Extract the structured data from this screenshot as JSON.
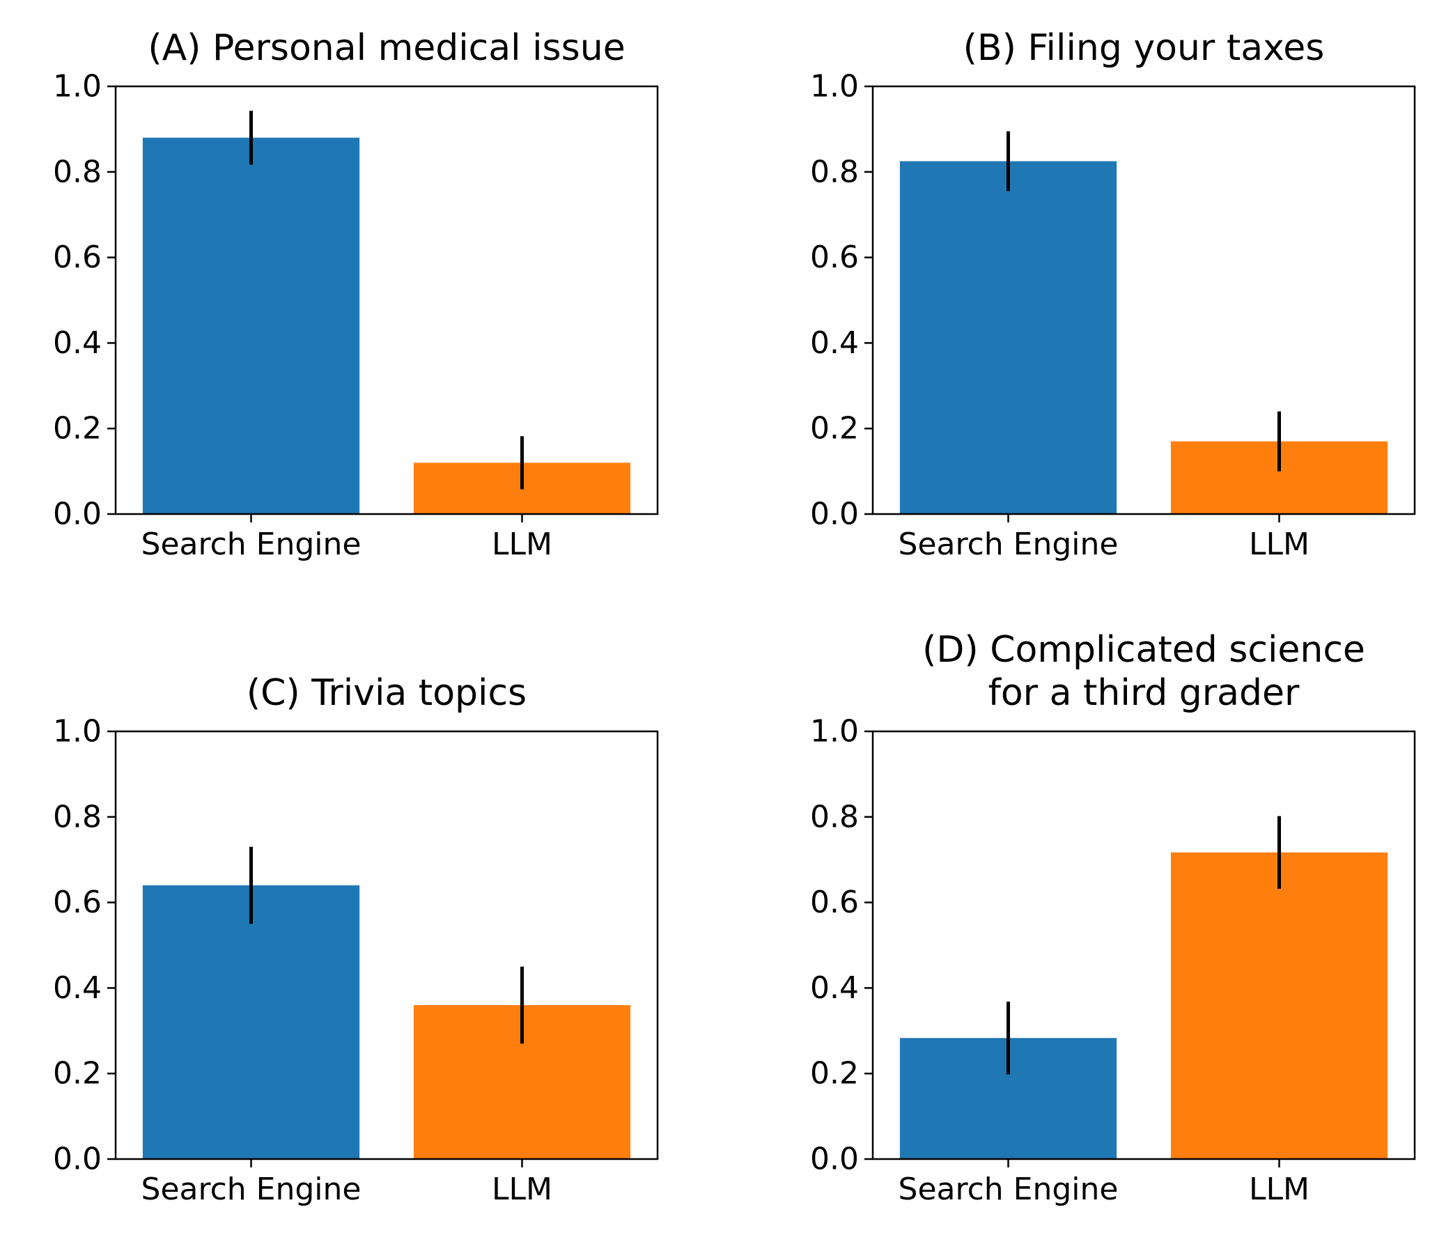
{
  "figure": {
    "background": "#ffffff"
  },
  "chart_data": [
    {
      "type": "bar",
      "title_lines": [
        "(A) Personal medical issue"
      ],
      "categories": [
        "Search Engine",
        "LLM"
      ],
      "values": [
        0.88,
        0.12
      ],
      "error": [
        0.063,
        0.062
      ],
      "colors": [
        "#1f77b4",
        "#ff7f0e"
      ],
      "ylim": [
        0,
        1
      ],
      "yticks": [
        "0.0",
        "0.2",
        "0.4",
        "0.6",
        "0.8",
        "1.0"
      ],
      "xlabel": "",
      "ylabel": ""
    },
    {
      "type": "bar",
      "title_lines": [
        "(B) Filing your taxes"
      ],
      "categories": [
        "Search Engine",
        "LLM"
      ],
      "values": [
        0.825,
        0.17
      ],
      "error": [
        0.07,
        0.07
      ],
      "colors": [
        "#1f77b4",
        "#ff7f0e"
      ],
      "ylim": [
        0,
        1
      ],
      "yticks": [
        "0.0",
        "0.2",
        "0.4",
        "0.6",
        "0.8",
        "1.0"
      ],
      "xlabel": "",
      "ylabel": ""
    },
    {
      "type": "bar",
      "title_lines": [
        "(C) Trivia topics"
      ],
      "categories": [
        "Search Engine",
        "LLM"
      ],
      "values": [
        0.64,
        0.36
      ],
      "error": [
        0.09,
        0.09
      ],
      "colors": [
        "#1f77b4",
        "#ff7f0e"
      ],
      "ylim": [
        0,
        1
      ],
      "yticks": [
        "0.0",
        "0.2",
        "0.4",
        "0.6",
        "0.8",
        "1.0"
      ],
      "xlabel": "",
      "ylabel": ""
    },
    {
      "type": "bar",
      "title_lines": [
        "(D) Complicated science",
        "for a third grader"
      ],
      "categories": [
        "Search Engine",
        "LLM"
      ],
      "values": [
        0.283,
        0.717
      ],
      "error": [
        0.085,
        0.085
      ],
      "colors": [
        "#1f77b4",
        "#ff7f0e"
      ],
      "ylim": [
        0,
        1
      ],
      "yticks": [
        "0.0",
        "0.2",
        "0.4",
        "0.6",
        "0.8",
        "1.0"
      ],
      "xlabel": "",
      "ylabel": ""
    }
  ]
}
